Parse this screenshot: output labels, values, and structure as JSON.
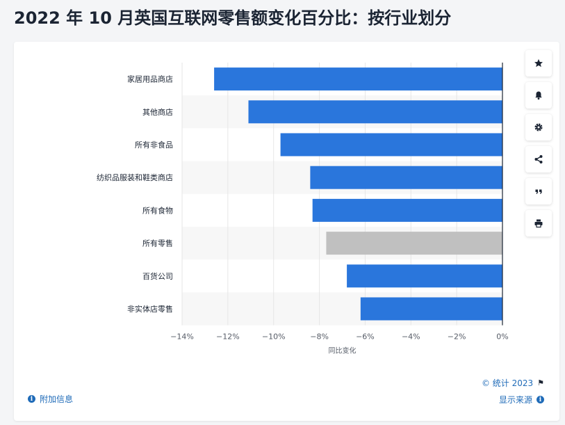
{
  "page": {
    "title": "2022 年 10 月英国互联网零售额变化百分比：按行业划分"
  },
  "toolbar": {
    "icons": [
      "star-icon",
      "bell-icon",
      "gear-icon",
      "share-icon",
      "quote-icon",
      "print-icon"
    ]
  },
  "footer": {
    "additional_info": "附加信息",
    "copyright": "© 统计 2023",
    "show_source": "显示来源"
  },
  "colors": {
    "bar": "#2a76dc",
    "bar_highlight": "#c0c0c0",
    "grid": "#e6e6e6",
    "band": "#f7f7f7",
    "axis": "#1b2433",
    "tick_text": "#555b66"
  },
  "chart_data": {
    "type": "bar",
    "orientation": "horizontal",
    "categories": [
      "家居用品商店",
      "其他商店",
      "所有非食品",
      "纺织品服装和鞋类商店",
      "所有食物",
      "所有零售",
      "百货公司",
      "非实体店零售"
    ],
    "values": [
      -12.6,
      -11.1,
      -9.7,
      -8.4,
      -8.3,
      -7.7,
      -6.8,
      -6.2
    ],
    "highlight": "所有零售",
    "title": "2022 年 10 月英国互联网零售额变化百分比：按行业划分",
    "xlabel": "同比变化",
    "ylabel": "",
    "xlim": [
      -14,
      0
    ],
    "xticks": [
      -14,
      -12,
      -10,
      -8,
      -6,
      -4,
      -2,
      0
    ],
    "xtick_labels": [
      "−14%",
      "−12%",
      "−10%",
      "−8%",
      "−6%",
      "−4%",
      "−2%",
      "0%"
    ],
    "grid": true,
    "legend": "none"
  }
}
